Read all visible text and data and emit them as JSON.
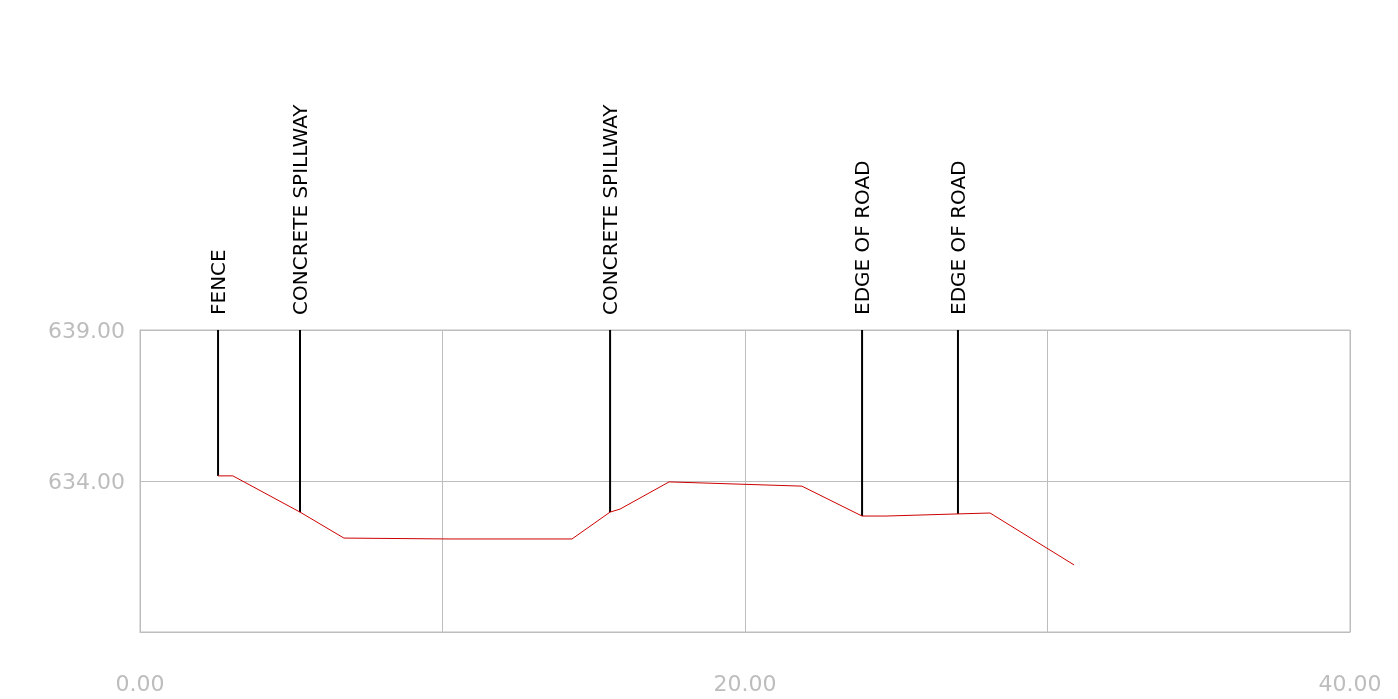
{
  "chart_data": {
    "type": "line",
    "x": [
      2.58,
      3.07,
      5.29,
      6.74,
      10.25,
      14.28,
      15.54,
      15.87,
      17.49,
      21.88,
      23.87,
      24.66,
      27.04,
      28.1,
      30.88
    ],
    "series": [
      {
        "color": "#cc0000",
        "values": [
          634.17,
          634.17,
          632.97,
          632.11,
          632.08,
          632.08,
          632.97,
          633.07,
          633.97,
          633.83,
          632.84,
          632.84,
          632.91,
          632.94,
          631.22
        ]
      }
    ],
    "xlim": [
      0,
      40
    ],
    "xticks": [
      {
        "value": 0,
        "label": "0.00"
      },
      {
        "value": 10,
        "label": null
      },
      {
        "value": 20,
        "label": "20.00"
      },
      {
        "value": 30,
        "label": null
      },
      {
        "value": 40,
        "label": "40.00"
      }
    ],
    "ylim": [
      629,
      639
    ],
    "yticks": [
      {
        "value": 629,
        "label": null
      },
      {
        "value": 634,
        "label": "634.00"
      },
      {
        "value": 639,
        "label": "639.00"
      }
    ],
    "grid": true,
    "marker": "none",
    "annotations": [
      {
        "text": "FENCE",
        "x": 2.58,
        "y": 634.17
      },
      {
        "text": "CONCRETE SPILLWAY",
        "x": 5.29,
        "y": 632.97
      },
      {
        "text": "CONCRETE SPILLWAY",
        "x": 15.54,
        "y": 632.97
      },
      {
        "text": "EDGE OF ROAD",
        "x": 23.87,
        "y": 632.84
      },
      {
        "text": "EDGE OF ROAD",
        "x": 27.04,
        "y": 632.91
      }
    ]
  }
}
